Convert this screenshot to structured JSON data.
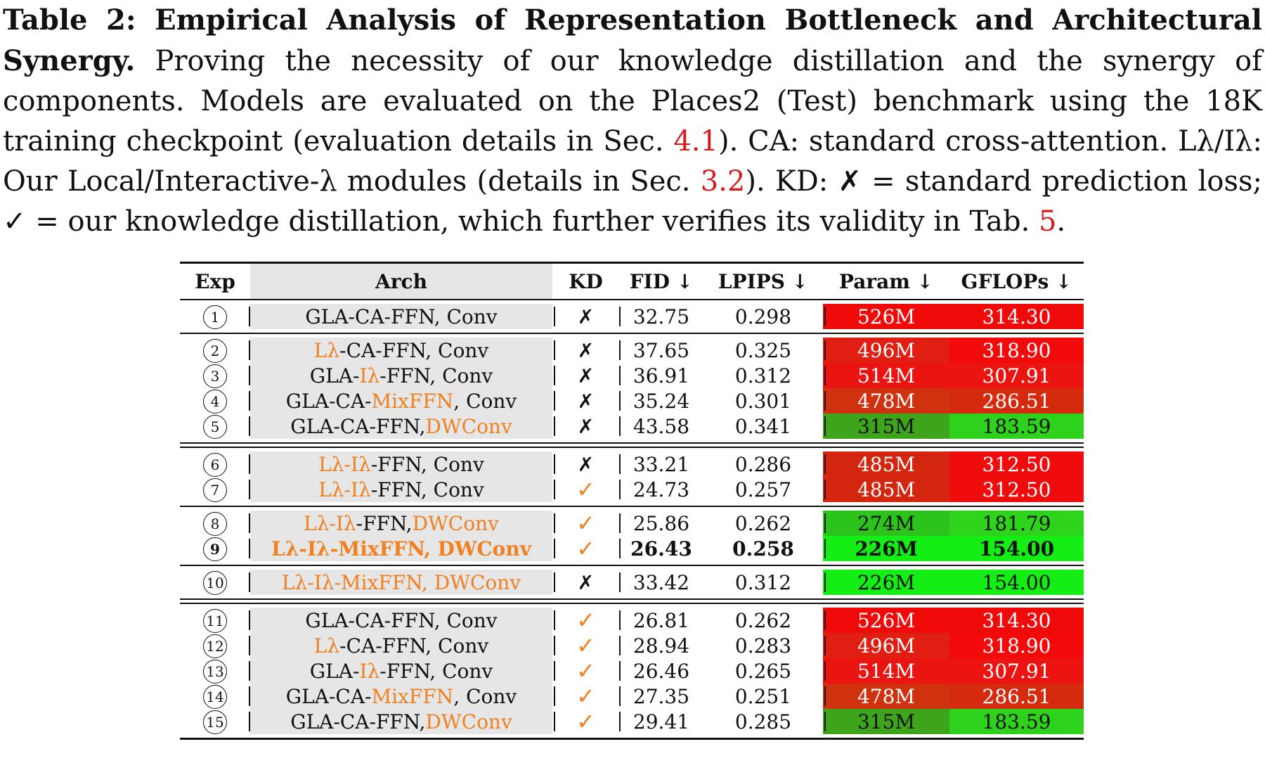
{
  "caption": {
    "lead": "Table 2: Empirical Analysis of Representation Bottleneck and Architectural Synergy.",
    "text_1": " Proving the necessity of our knowledge distillation and the synergy of components. Models are evaluated on the Places2 (Test) benchmark using the 18K training checkpoint (evaluation details in Sec. ",
    "ref_1": "4.1",
    "text_2": "). CA: standard cross-attention. Lλ/Iλ: Our Local/Interactive-λ modules (details in Sec. ",
    "ref_2": "3.2",
    "text_3": "). KD: ✗ = standard prediction loss; ✓ = our knowledge distillation, which further verifies its validity in Tab. ",
    "ref_3": "5",
    "text_4": "."
  },
  "table": {
    "headers": {
      "exp": "Exp",
      "arch": "Arch",
      "kd": "KD",
      "fid": "FID ↓",
      "lpips": "LPIPS ↓",
      "param": "Param ↓",
      "gflops": "GFLOPs ↓"
    },
    "rows": [
      {
        "exp": "1",
        "arch": [
          {
            "t": "GLA-CA-FFN, Conv",
            "h": false
          }
        ],
        "kd": "✗",
        "fid": "32.75",
        "lpips": "0.298",
        "param": "526M",
        "gflops": "314.30",
        "param_color": "#f00a0a",
        "gflops_color": "#f00a0a"
      },
      {
        "exp": "2",
        "arch": [
          {
            "t": "Lλ",
            "h": true
          },
          {
            "t": "-CA-FFN, Conv",
            "h": false
          }
        ],
        "kd": "✗",
        "fid": "37.65",
        "lpips": "0.325",
        "param": "496M",
        "gflops": "318.90",
        "param_color": "#e01e12",
        "gflops_color": "#f40a0a"
      },
      {
        "exp": "3",
        "arch": [
          {
            "t": "GLA-",
            "h": false
          },
          {
            "t": "Iλ",
            "h": true
          },
          {
            "t": "-FFN, Conv",
            "h": false
          }
        ],
        "kd": "✗",
        "fid": "36.91",
        "lpips": "0.312",
        "param": "514M",
        "gflops": "307.91",
        "param_color": "#ea1410",
        "gflops_color": "#ec1410"
      },
      {
        "exp": "4",
        "arch": [
          {
            "t": "GLA-CA-",
            "h": false
          },
          {
            "t": "MixFFN",
            "h": true
          },
          {
            "t": ", Conv",
            "h": false
          }
        ],
        "kd": "✗",
        "fid": "35.24",
        "lpips": "0.301",
        "param": "478M",
        "gflops": "286.51",
        "param_color": "#d0320f",
        "gflops_color": "#d62a0f"
      },
      {
        "exp": "5",
        "arch": [
          {
            "t": "GLA-CA-FFN, ",
            "h": false
          },
          {
            "t": "DWConv",
            "h": true
          }
        ],
        "kd": "✗",
        "fid": "43.58",
        "lpips": "0.341",
        "param": "315M",
        "gflops": "183.59",
        "param_color": "#3ea41c",
        "gflops_color": "#2ed11c"
      },
      {
        "exp": "6",
        "arch": [
          {
            "t": "Lλ-Iλ",
            "h": true
          },
          {
            "t": "-FFN, Conv",
            "h": false
          }
        ],
        "kd": "✗",
        "fid": "33.21",
        "lpips": "0.286",
        "param": "485M",
        "gflops": "312.50",
        "param_color": "#d4260f",
        "gflops_color": "#f00c0c"
      },
      {
        "exp": "7",
        "arch": [
          {
            "t": "Lλ-Iλ",
            "h": true
          },
          {
            "t": "-FFN, Conv",
            "h": false
          }
        ],
        "kd": "✓",
        "fid": "24.73",
        "lpips": "0.257",
        "param": "485M",
        "gflops": "312.50",
        "param_color": "#d4260f",
        "gflops_color": "#f00c0c"
      },
      {
        "exp": "8",
        "arch": [
          {
            "t": "Lλ-Iλ",
            "h": true
          },
          {
            "t": "-FFN, ",
            "h": false
          },
          {
            "t": "DWConv",
            "h": true
          }
        ],
        "kd": "✓",
        "fid": "25.86",
        "lpips": "0.262",
        "param": "274M",
        "gflops": "181.79",
        "param_color": "#2cc41c",
        "gflops_color": "#2ed41c",
        "bold": false
      },
      {
        "exp": "9",
        "arch": [
          {
            "t": "Lλ-Iλ-MixFFN, DWConv",
            "h": true
          }
        ],
        "kd": "✓",
        "fid": "26.43",
        "lpips": "0.258",
        "param": "226M",
        "gflops": "154.00",
        "param_color": "#14ee14",
        "gflops_color": "#14ee14",
        "bold": true
      },
      {
        "exp": "10",
        "arch": [
          {
            "t": "Lλ-Iλ-MixFFN, DWConv",
            "h": true
          }
        ],
        "kd": "✗",
        "fid": "33.42",
        "lpips": "0.312",
        "param": "226M",
        "gflops": "154.00",
        "param_color": "#14ee14",
        "gflops_color": "#14ee14"
      },
      {
        "exp": "11",
        "arch": [
          {
            "t": "GLA-CA-FFN, Conv",
            "h": false
          }
        ],
        "kd": "✓",
        "fid": "26.81",
        "lpips": "0.262",
        "param": "526M",
        "gflops": "314.30",
        "param_color": "#f00a0a",
        "gflops_color": "#f00a0a"
      },
      {
        "exp": "12",
        "arch": [
          {
            "t": "Lλ",
            "h": true
          },
          {
            "t": "-CA-FFN, Conv",
            "h": false
          }
        ],
        "kd": "✓",
        "fid": "28.94",
        "lpips": "0.283",
        "param": "496M",
        "gflops": "318.90",
        "param_color": "#e01e12",
        "gflops_color": "#f40a0a"
      },
      {
        "exp": "13",
        "arch": [
          {
            "t": "GLA-",
            "h": false
          },
          {
            "t": "Iλ",
            "h": true
          },
          {
            "t": "-FFN, Conv",
            "h": false
          }
        ],
        "kd": "✓",
        "fid": "26.46",
        "lpips": "0.265",
        "param": "514M",
        "gflops": "307.91",
        "param_color": "#ea1410",
        "gflops_color": "#ec1410"
      },
      {
        "exp": "14",
        "arch": [
          {
            "t": "GLA-CA-",
            "h": false
          },
          {
            "t": "MixFFN",
            "h": true
          },
          {
            "t": ", Conv",
            "h": false
          }
        ],
        "kd": "✓",
        "fid": "27.35",
        "lpips": "0.251",
        "param": "478M",
        "gflops": "286.51",
        "param_color": "#d0320f",
        "gflops_color": "#d62a0f"
      },
      {
        "exp": "15",
        "arch": [
          {
            "t": "GLA-CA-FFN, ",
            "h": false
          },
          {
            "t": "DWConv",
            "h": true
          }
        ],
        "kd": "✓",
        "fid": "29.41",
        "lpips": "0.285",
        "param": "315M",
        "gflops": "183.59",
        "param_color": "#3ea41c",
        "gflops_color": "#2ed11c"
      }
    ]
  },
  "colors": {
    "highlight": "#f08020",
    "ref": "#d7191c",
    "arch_bg": "#e6e6e6"
  }
}
